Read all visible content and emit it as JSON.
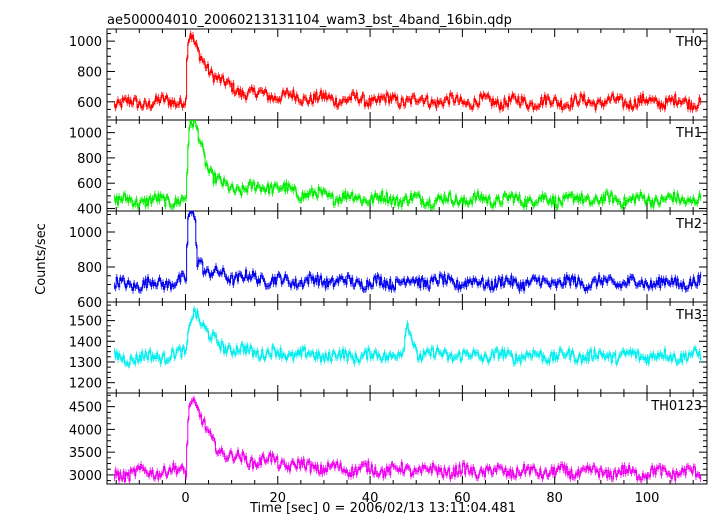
{
  "title": "ae500004010_20060213131104_wam3_bst_4band_16bin.qdp",
  "xlabel": "Time [sec] 0 = 2006/02/13 13:11:04.481",
  "ylabel": "Counts/sec",
  "chart_data": [
    {
      "type": "line",
      "name": "TH0",
      "color": "#ff0000",
      "xlim": [
        -17,
        113
      ],
      "ylim": [
        480,
        1080
      ],
      "yticks": [
        600,
        800,
        1000
      ],
      "x": [
        -15,
        -10,
        -5,
        0,
        0.3,
        1,
        2,
        3,
        4,
        5,
        6,
        8,
        10,
        12,
        15,
        20,
        25,
        30,
        40,
        50,
        60,
        70,
        80,
        90,
        100,
        110
      ],
      "y": [
        590,
        590,
        600,
        610,
        980,
        1040,
        960,
        900,
        860,
        820,
        780,
        720,
        690,
        670,
        650,
        640,
        630,
        620,
        610,
        610,
        600,
        600,
        600,
        600,
        600,
        600
      ]
    },
    {
      "type": "line",
      "name": "TH1",
      "color": "#00ee00",
      "xlim": [
        -17,
        113
      ],
      "ylim": [
        380,
        1100
      ],
      "yticks": [
        400,
        600,
        800,
        1000
      ],
      "x": [
        -15,
        -10,
        -5,
        0,
        0.5,
        1,
        2,
        3,
        4,
        5,
        6,
        8,
        10,
        12,
        15,
        18,
        20,
        25,
        30,
        40,
        50,
        60,
        70,
        80,
        90,
        100,
        110
      ],
      "y": [
        460,
        460,
        460,
        470,
        900,
        1060,
        1070,
        960,
        820,
        700,
        640,
        580,
        560,
        550,
        560,
        580,
        560,
        520,
        500,
        480,
        470,
        470,
        470,
        470,
        470,
        470,
        470
      ]
    },
    {
      "type": "line",
      "name": "TH2",
      "color": "#0000ee",
      "xlim": [
        -17,
        113
      ],
      "ylim": [
        600,
        1120
      ],
      "yticks": [
        600,
        800,
        1000
      ],
      "x": [
        -15,
        -10,
        -5,
        0,
        0.5,
        1,
        2,
        2.5,
        3,
        4,
        5,
        8,
        10,
        15,
        20,
        30,
        40,
        50,
        60,
        70,
        80,
        90,
        100,
        110
      ],
      "y": [
        700,
        700,
        710,
        720,
        1080,
        1110,
        1100,
        820,
        860,
        780,
        760,
        760,
        740,
        740,
        720,
        720,
        710,
        720,
        710,
        710,
        710,
        710,
        710,
        710
      ]
    },
    {
      "type": "line",
      "name": "TH3",
      "color": "#00eeee",
      "xlim": [
        -17,
        113
      ],
      "ylim": [
        1150,
        1590
      ],
      "yticks": [
        1200,
        1300,
        1400,
        1500
      ],
      "x": [
        -15,
        -10,
        -5,
        0,
        1,
        2,
        3,
        5,
        8,
        10,
        20,
        30,
        40,
        47,
        48,
        50,
        60,
        70,
        80,
        90,
        100,
        110
      ],
      "y": [
        1320,
        1320,
        1330,
        1340,
        1520,
        1560,
        1500,
        1420,
        1380,
        1360,
        1340,
        1330,
        1330,
        1340,
        1480,
        1340,
        1330,
        1330,
        1330,
        1330,
        1330,
        1330
      ]
    },
    {
      "type": "line",
      "name": "TH0123",
      "color": "#ee00ee",
      "xlim": [
        -17,
        113
      ],
      "ylim": [
        2800,
        4800
      ],
      "yticks": [
        3000,
        3500,
        4000,
        4500
      ],
      "x": [
        -15,
        -10,
        -5,
        0,
        0.5,
        1,
        2,
        3,
        4,
        5,
        6,
        8,
        10,
        12,
        15,
        18,
        20,
        25,
        30,
        40,
        50,
        60,
        70,
        80,
        90,
        100,
        110
      ],
      "y": [
        3000,
        3050,
        3080,
        3100,
        4300,
        4700,
        4550,
        4300,
        4050,
        3850,
        3700,
        3500,
        3400,
        3350,
        3300,
        3350,
        3250,
        3200,
        3150,
        3120,
        3100,
        3080,
        3070,
        3060,
        3050,
        3050,
        3050
      ]
    }
  ],
  "xticks": [
    0,
    20,
    40,
    60,
    80,
    100
  ]
}
